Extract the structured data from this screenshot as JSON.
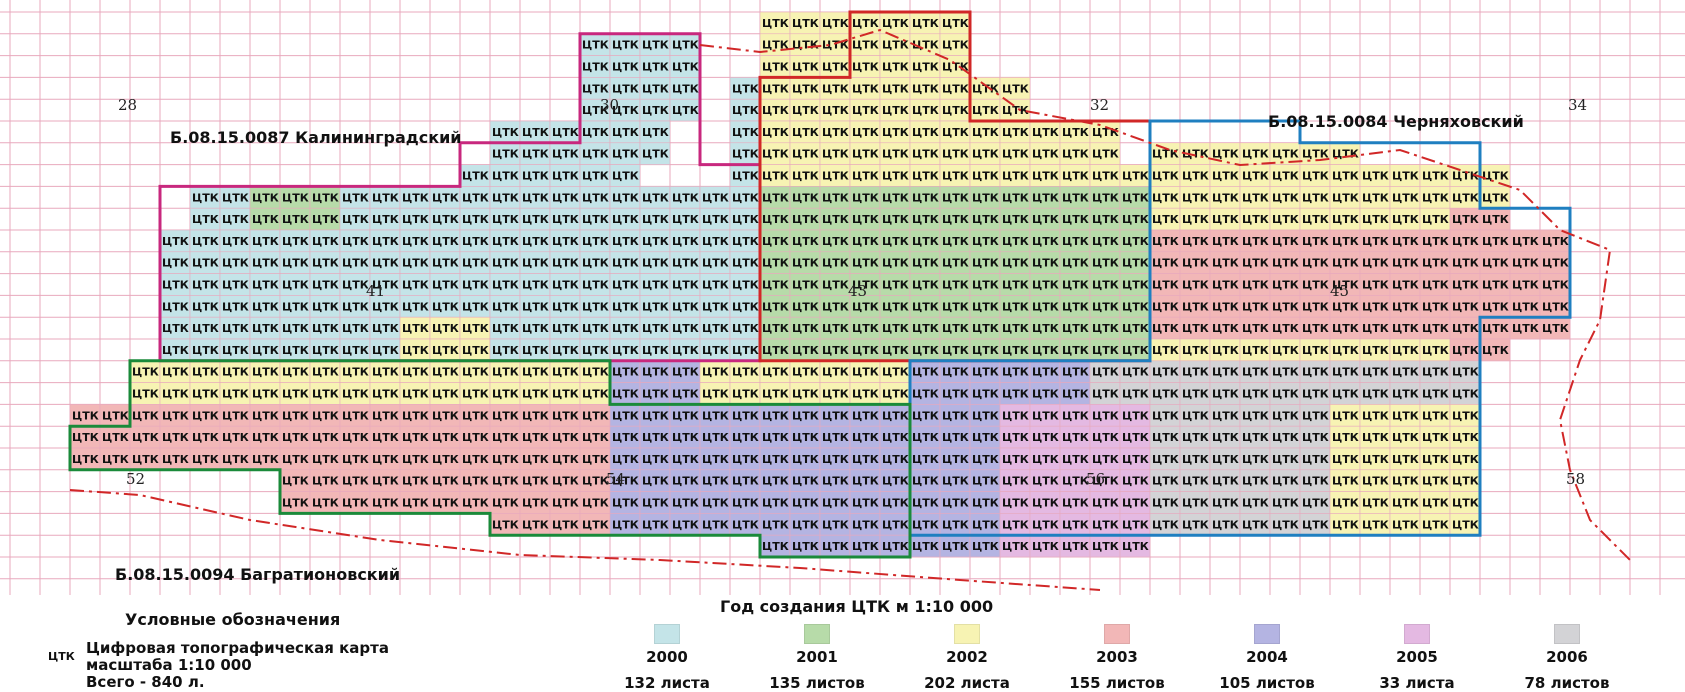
{
  "map": {
    "cell_label": "ЦТК",
    "sheet_numbers": [
      "28",
      "30",
      "32",
      "34",
      "41",
      "43",
      "45",
      "52",
      "54",
      "56",
      "58"
    ],
    "regions": {
      "kaliningrad": "Б.08.15.0087 Калининградский",
      "chernyakhovsky": "Б.08.15.0084 Черняховский",
      "bagrationovsky": "Б.08.15.0094 Багратионовский"
    },
    "border_colors": {
      "kaliningrad": "#c8287e",
      "chernyakhovsky": "#1f7fc0",
      "bagrationovsky": "#1a8a3a",
      "center": "#d12727"
    }
  },
  "legend": {
    "title": "Условные обозначения",
    "symbol": "ЦТК",
    "desc_line1": "Цифровая топографическая карта",
    "desc_line2": "масштаба 1:10 000",
    "desc_line3": "Всего - 840 л."
  },
  "years": {
    "title": "Год создания ЦТК м 1:10 000",
    "items": [
      {
        "year": "2000",
        "count": "132 листа",
        "color": "#c4e4e8"
      },
      {
        "year": "2001",
        "count": "135 листов",
        "color": "#b7dba9"
      },
      {
        "year": "2002",
        "count": "202 листа",
        "color": "#f7f3b3"
      },
      {
        "year": "2003",
        "count": "155 листов",
        "color": "#f2b7b7"
      },
      {
        "year": "2004",
        "count": "105 листов",
        "color": "#b4b4e2"
      },
      {
        "year": "2005",
        "count": "33 листа",
        "color": "#e4b9e2"
      },
      {
        "year": "2006",
        "count": "78 листов",
        "color": "#d3d3d6"
      }
    ]
  }
}
